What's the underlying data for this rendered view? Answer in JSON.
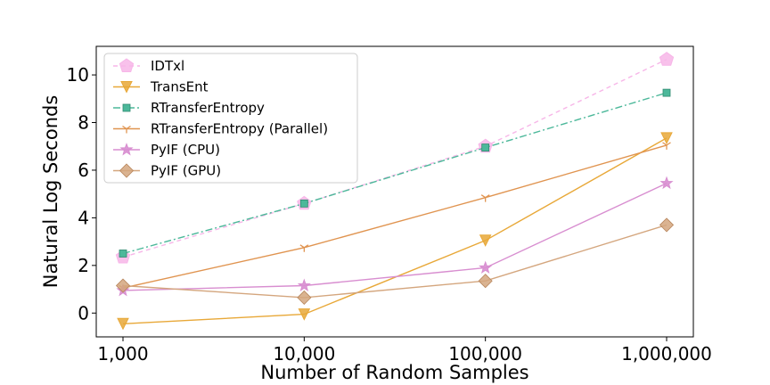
{
  "chart_data": {
    "type": "line",
    "x_scale": "log",
    "x": [
      1000,
      10000,
      100000,
      1000000
    ],
    "x_tick_labels": [
      "1,000",
      "10,000",
      "100,000",
      "1,000,000"
    ],
    "xlabel": "Number of Random Samples",
    "ylabel": "Natural Log Seconds",
    "ylim": [
      -1.0,
      11.2
    ],
    "y_ticks": [
      0,
      2,
      4,
      6,
      8,
      10
    ],
    "grid": false,
    "legend_position": "top-left",
    "series": [
      {
        "name": "IDTxl",
        "color": "#f7b6e8",
        "line_style": "dashed",
        "marker": "pentagon",
        "values": [
          2.35,
          4.6,
          7.0,
          10.65
        ]
      },
      {
        "name": "TransEnt",
        "color": "#e8a838",
        "line_style": "solid",
        "marker": "triangle-down",
        "values": [
          -0.45,
          -0.05,
          3.05,
          7.35
        ]
      },
      {
        "name": "RTransferEntropy",
        "color": "#4cb89a",
        "line_style": "dashdot",
        "marker": "square",
        "values": [
          2.5,
          4.6,
          6.95,
          9.25
        ]
      },
      {
        "name": "RTransferEntropy (Parallel)",
        "color": "#e09450",
        "line_style": "solid",
        "marker": "tri-down",
        "values": [
          1.05,
          2.75,
          4.85,
          7.05
        ]
      },
      {
        "name": "PyIF (CPU)",
        "color": "#d88ed0",
        "line_style": "solid",
        "marker": "star",
        "values": [
          0.95,
          1.15,
          1.9,
          5.45
        ]
      },
      {
        "name": "PyIF (GPU)",
        "color": "#d4a67e",
        "line_style": "solid",
        "marker": "diamond",
        "values": [
          1.15,
          0.65,
          1.35,
          3.7
        ]
      }
    ]
  }
}
